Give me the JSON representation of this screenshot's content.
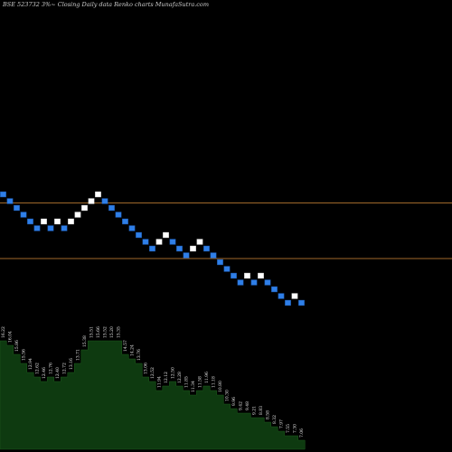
{
  "header": {
    "text": "BSE 523732  3%~  Closing Daily data  Renko  charts MunafaSutra.com"
  },
  "chart_data": {
    "type": "renko",
    "title": "BSE 523732  3%~  Closing Daily data  Renko  charts MunafaSutra.com",
    "ylim": [
      0,
      100
    ],
    "colors": {
      "up": "#ffffff",
      "down": "#2f7fe8",
      "level_line": "#a0692a",
      "volume_fill": "#0e3a10",
      "background": "#000000"
    },
    "level_lines": [
      55.1,
      42.8
    ],
    "bricks": [
      {
        "v": 57,
        "dir": "down"
      },
      {
        "v": 55.5,
        "dir": "down"
      },
      {
        "v": 54,
        "dir": "down"
      },
      {
        "v": 52.5,
        "dir": "down"
      },
      {
        "v": 51,
        "dir": "down"
      },
      {
        "v": 49.5,
        "dir": "down"
      },
      {
        "v": 51,
        "dir": "up"
      },
      {
        "v": 49.5,
        "dir": "down"
      },
      {
        "v": 51,
        "dir": "up"
      },
      {
        "v": 49.5,
        "dir": "down"
      },
      {
        "v": 51,
        "dir": "up"
      },
      {
        "v": 52.5,
        "dir": "up"
      },
      {
        "v": 54,
        "dir": "up"
      },
      {
        "v": 55.5,
        "dir": "up"
      },
      {
        "v": 57,
        "dir": "up"
      },
      {
        "v": 55.5,
        "dir": "down"
      },
      {
        "v": 54,
        "dir": "down"
      },
      {
        "v": 52.5,
        "dir": "down"
      },
      {
        "v": 51,
        "dir": "down"
      },
      {
        "v": 49.5,
        "dir": "down"
      },
      {
        "v": 48,
        "dir": "down"
      },
      {
        "v": 46.5,
        "dir": "down"
      },
      {
        "v": 45,
        "dir": "down"
      },
      {
        "v": 46.5,
        "dir": "up"
      },
      {
        "v": 48,
        "dir": "up"
      },
      {
        "v": 46.5,
        "dir": "down"
      },
      {
        "v": 45,
        "dir": "down"
      },
      {
        "v": 43.5,
        "dir": "down"
      },
      {
        "v": 45,
        "dir": "up"
      },
      {
        "v": 46.5,
        "dir": "up"
      },
      {
        "v": 45,
        "dir": "down"
      },
      {
        "v": 43.5,
        "dir": "down"
      },
      {
        "v": 42,
        "dir": "down"
      },
      {
        "v": 40.5,
        "dir": "down"
      },
      {
        "v": 39,
        "dir": "down"
      },
      {
        "v": 37.5,
        "dir": "down"
      },
      {
        "v": 39,
        "dir": "up"
      },
      {
        "v": 37.5,
        "dir": "down"
      },
      {
        "v": 39,
        "dir": "up"
      },
      {
        "v": 37.5,
        "dir": "down"
      },
      {
        "v": 36,
        "dir": "down"
      },
      {
        "v": 34.5,
        "dir": "down"
      },
      {
        "v": 33,
        "dir": "down"
      },
      {
        "v": 34.5,
        "dir": "up"
      },
      {
        "v": 33,
        "dir": "down"
      }
    ],
    "volume": [
      {
        "v": 24,
        "label": "16.22"
      },
      {
        "v": 23,
        "label": "16.04"
      },
      {
        "v": 21,
        "label": "15.86"
      },
      {
        "v": 19,
        "label": "15.56"
      },
      {
        "v": 17,
        "label": "12.94"
      },
      {
        "v": 16,
        "label": "12.62"
      },
      {
        "v": 15,
        "label": "12.46"
      },
      {
        "v": 16,
        "label": "12.76"
      },
      {
        "v": 15,
        "label": "12.40"
      },
      {
        "v": 16,
        "label": "12.72"
      },
      {
        "v": 17,
        "label": "13.16"
      },
      {
        "v": 19,
        "label": "13.71"
      },
      {
        "v": 22,
        "label": "15.38"
      },
      {
        "v": 24,
        "label": "15.51"
      },
      {
        "v": 24,
        "label": "15.66"
      },
      {
        "v": 24,
        "label": "15.52"
      },
      {
        "v": 24,
        "label": "15.20"
      },
      {
        "v": 24,
        "label": "15.35"
      },
      {
        "v": 21,
        "label": "14.57"
      },
      {
        "v": 20,
        "label": "14.24"
      },
      {
        "v": 19,
        "label": "13.76"
      },
      {
        "v": 16,
        "label": "13.06"
      },
      {
        "v": 15,
        "label": "12.52"
      },
      {
        "v": 13,
        "label": "11.94"
      },
      {
        "v": 14,
        "label": "12.12"
      },
      {
        "v": 15,
        "label": "12.50"
      },
      {
        "v": 14,
        "label": "12.28"
      },
      {
        "v": 13,
        "label": "11.85"
      },
      {
        "v": 12,
        "label": "11.34"
      },
      {
        "v": 13,
        "label": "11.58"
      },
      {
        "v": 14,
        "label": "11.96"
      },
      {
        "v": 13,
        "label": "11.18"
      },
      {
        "v": 12,
        "label": "10.80"
      },
      {
        "v": 10,
        "label": "10.30"
      },
      {
        "v": 9,
        "label": "9.96"
      },
      {
        "v": 8,
        "label": "9.42"
      },
      {
        "v": 8,
        "label": "9.48"
      },
      {
        "v": 7,
        "label": "9.21"
      },
      {
        "v": 7,
        "label": "8.83"
      },
      {
        "v": 6,
        "label": "8.58"
      },
      {
        "v": 5,
        "label": "8.32"
      },
      {
        "v": 4,
        "label": "7.97"
      },
      {
        "v": 3,
        "label": "7.55"
      },
      {
        "v": 3,
        "label": "7.30"
      },
      {
        "v": 2,
        "label": "7.06"
      }
    ]
  }
}
